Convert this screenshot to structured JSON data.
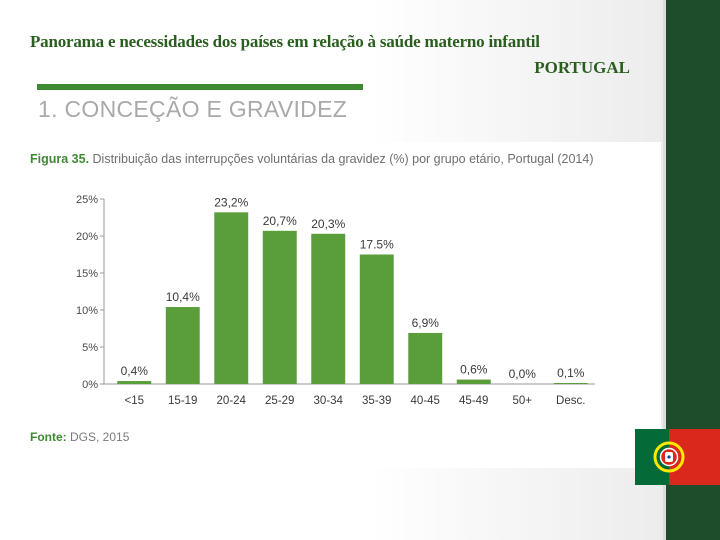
{
  "slide": {
    "title": "Panorama e necessidades dos países em relação à saúde materno infantil",
    "subtitle": "PORTUGAL",
    "section_heading": "1. CONCEÇÃO E GRAVIDEZ"
  },
  "figure": {
    "label": "Figura 35.",
    "caption": "Distribuição das interrupções voluntárias da gravidez (%) por grupo etário, Portugal (2014)",
    "source_label": "Fonte:",
    "source_text": "DGS, 2015"
  },
  "colors": {
    "bar": "#5a9e3c",
    "brand_green": "#3e8a33",
    "side_bar": "#1e4d2b"
  },
  "chart_data": {
    "type": "bar",
    "title": "Distribuição das interrupções voluntárias da gravidez (%) por grupo etário, Portugal (2014)",
    "xlabel": "",
    "ylabel": "",
    "categories": [
      "<15",
      "15-19",
      "20-24",
      "25-29",
      "30-34",
      "35-39",
      "40-45",
      "45-49",
      "50+",
      "Desc."
    ],
    "values": [
      0.4,
      10.4,
      23.2,
      20.7,
      20.3,
      17.5,
      6.9,
      0.6,
      0.0,
      0.1
    ],
    "value_labels": [
      "0,4%",
      "10,4%",
      "23,2%",
      "20,7%",
      "20,3%",
      "17.5%",
      "6,9%",
      "0,6%",
      "0,0%",
      "0,1%"
    ],
    "yticks": [
      0,
      5,
      10,
      15,
      20,
      25
    ],
    "ytick_labels": [
      "0%",
      "5%",
      "10%",
      "15%",
      "20%",
      "25%"
    ],
    "ylim": [
      0,
      25
    ],
    "grid": false,
    "legend": "none"
  }
}
